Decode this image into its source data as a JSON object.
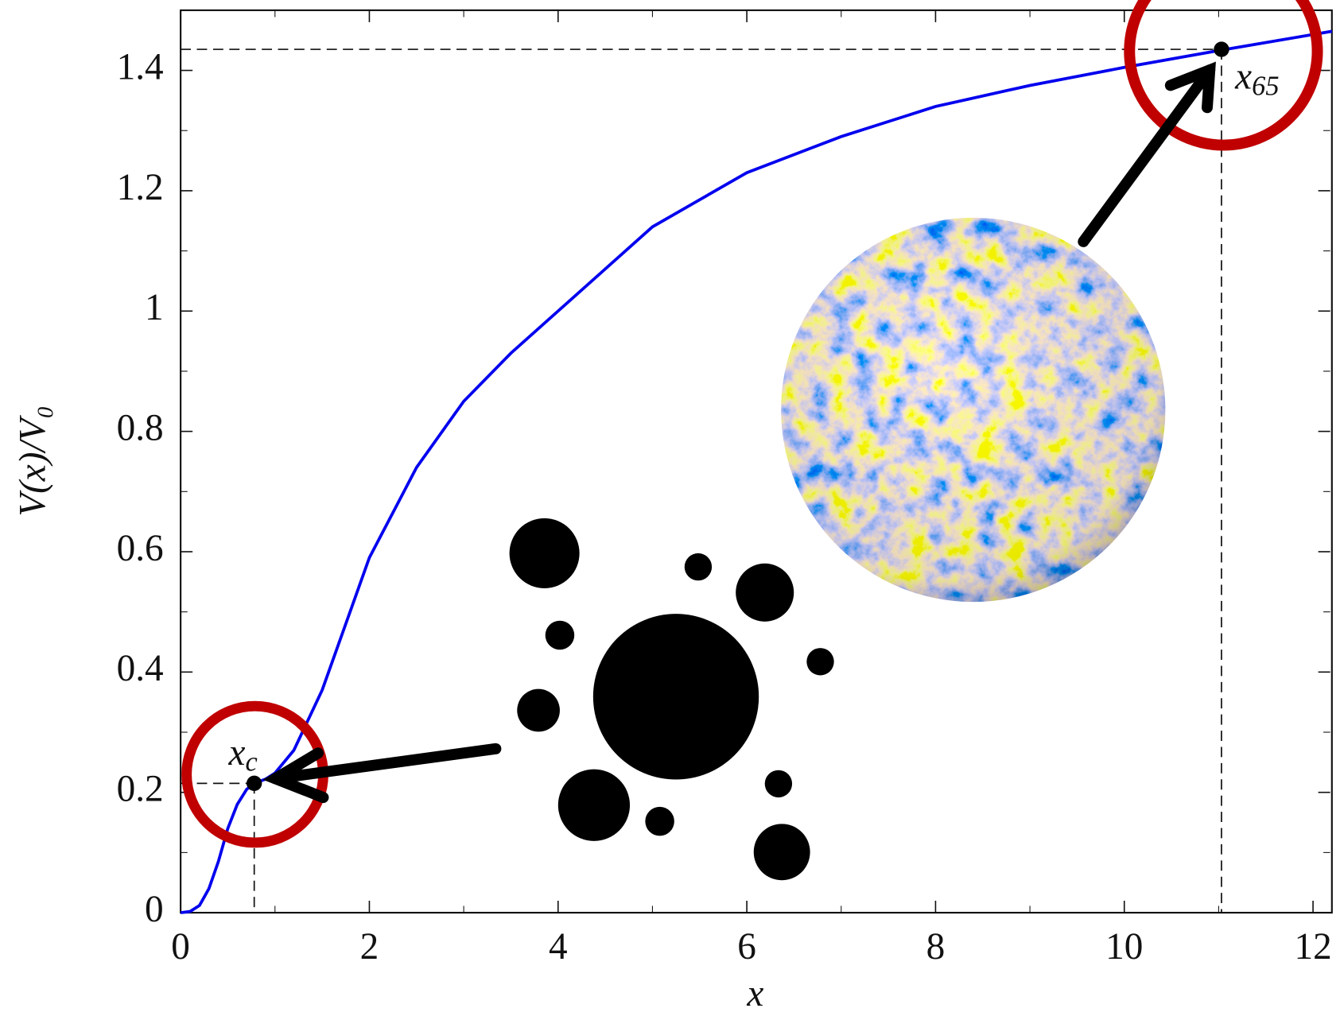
{
  "chart_data": {
    "type": "line",
    "xlabel": "x",
    "ylabel": "V(x)/V₀",
    "x": [
      0,
      0.1,
      0.2,
      0.3,
      0.4,
      0.5,
      0.6,
      0.7,
      0.78,
      0.9,
      1.0,
      1.2,
      1.5,
      2,
      2.5,
      3,
      3.5,
      4,
      5,
      6,
      7,
      8,
      9,
      10,
      11,
      12.2
    ],
    "values": [
      0,
      0.002,
      0.012,
      0.04,
      0.085,
      0.14,
      0.18,
      0.205,
      0.215,
      0.222,
      0.232,
      0.27,
      0.37,
      0.59,
      0.74,
      0.85,
      0.93,
      1.0,
      1.14,
      1.23,
      1.29,
      1.34,
      1.375,
      1.405,
      1.433,
      1.465
    ],
    "color": "#0000ee",
    "points": [
      {
        "x": 0.78,
        "y": 0.215,
        "label": "x",
        "sub": "c"
      },
      {
        "x": 11.03,
        "y": 1.435,
        "label": "x",
        "sub": "65"
      }
    ],
    "xlim": [
      0,
      12.2
    ],
    "ylim": [
      0,
      1.5
    ],
    "xticks": [
      0,
      2,
      4,
      6,
      8,
      10,
      12
    ],
    "yticks": [
      0,
      0.2,
      0.4,
      0.6,
      0.8,
      1,
      1.2,
      1.4
    ]
  }
}
